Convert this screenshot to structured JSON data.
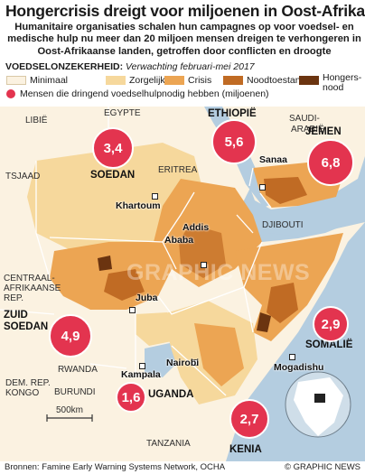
{
  "header": {
    "title": "Hongercrisis dreigt voor miljoenen in Oost-Afrika",
    "subtitle": "Humanitaire organisaties schalen hun campagnes op voor voedsel- en medische hulp nu meer dan 20 miljoen mensen dreigen te verhongeren in Oost-Afrikaanse landen, getroffen door conflicten en droogte"
  },
  "legend": {
    "heading": "VOEDSELONZEKERHEID:",
    "period": "Verwachting februari-mei 2017",
    "categories": [
      {
        "label": "Minimaal",
        "color": "#fbf2e1"
      },
      {
        "label": "Zorgelijk",
        "color": "#f6d89c"
      },
      {
        "label": "Crisis",
        "color": "#eca553"
      },
      {
        "label": "Noodtoestand",
        "color": "#c06b24"
      },
      {
        "label": "Hongers-",
        "label2": "nood",
        "color": "#6b3410"
      }
    ],
    "bubble_label": "Mensen die dringend voedselhulpnodig hebben (miljoenen)",
    "bubble_color": "#e3344f"
  },
  "countries": {
    "libya": "LIBIË",
    "egypt": "EGYPTE",
    "ethiopia": "ETHIOPIË",
    "saudi1": "SAUDI-",
    "saudi2": "ARABIË",
    "yemen": "JEMEN",
    "chad": "TSJAAD",
    "sudan": "SOEDAN",
    "eritrea": "ERITREA",
    "djibouti": "DJIBOUTI",
    "car1": "CENTRAAL-",
    "car2": "AFRIKAANSE",
    "car3": "REP.",
    "southsudan1": "ZUID",
    "southsudan2": "SOEDAN",
    "somalia": "SOMALIË",
    "rwanda": "RWANDA",
    "drc1": "DEM. REP.",
    "drc2": "KONGO",
    "burundi": "BURUNDI",
    "uganda": "UGANDA",
    "kenya": "KENIA",
    "tanzania": "TANZANIA"
  },
  "cities": {
    "khartoum": "Khartoum",
    "addis1": "Addis",
    "addis2": "Ababa",
    "sanaa": "Sanaa",
    "juba": "Juba",
    "nairobi": "Nairobi",
    "mogadishu": "Mogadishu",
    "kampala": "Kampala"
  },
  "needs": {
    "sudan": "3,4",
    "ethiopia": "5,6",
    "yemen": "6,8",
    "south_sudan": "4,9",
    "somalia": "2,9",
    "uganda": "1,6",
    "kenya": "2,7"
  },
  "scale": "500km",
  "watermark": "GRAPHIC NEWS",
  "footer": {
    "source": "Bronnen: Famine Early Warning Systems Network, OCHA",
    "credit": "© GRAPHIC NEWS"
  }
}
